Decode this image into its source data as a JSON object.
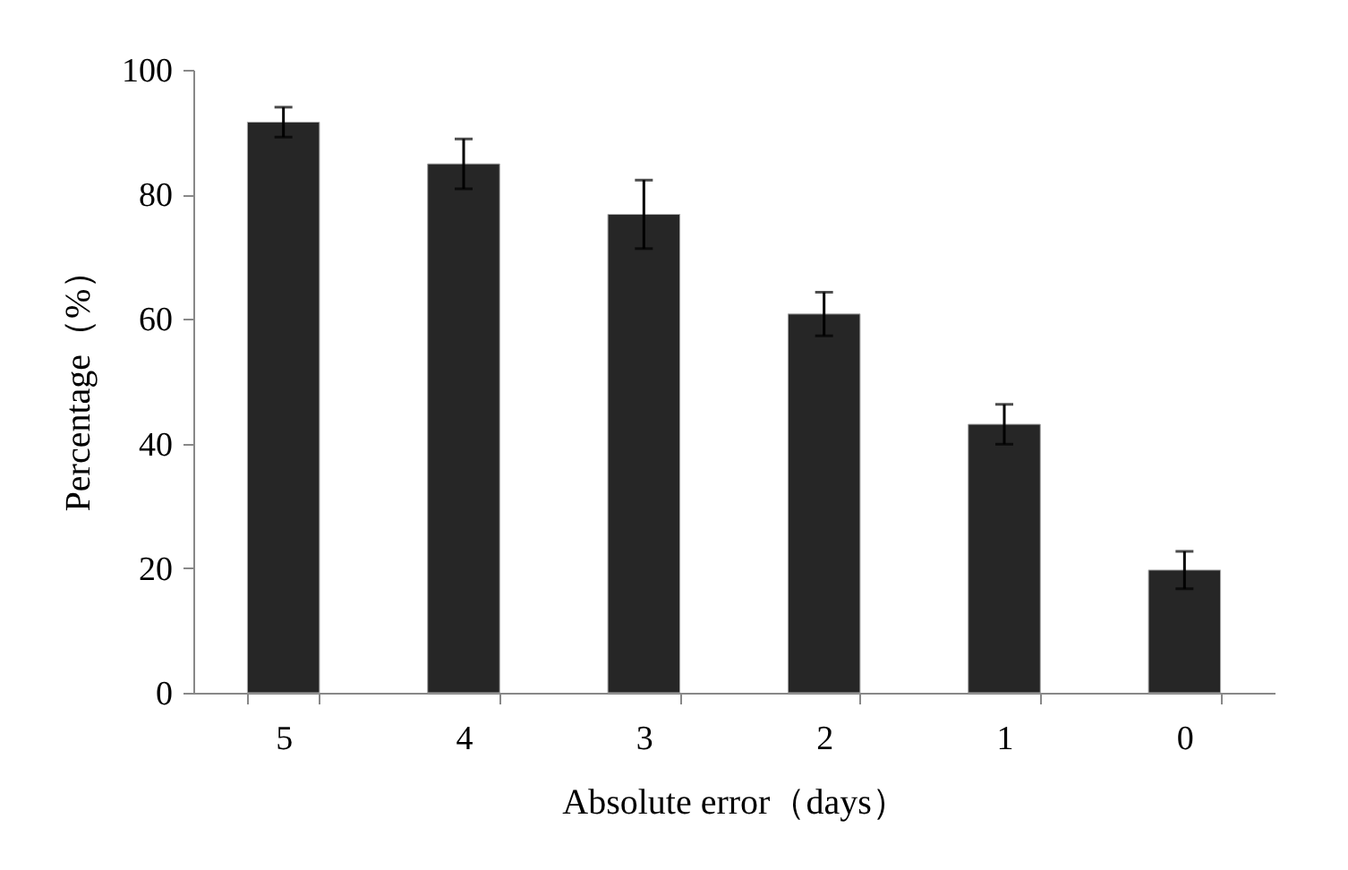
{
  "chart_data": {
    "type": "bar",
    "xlabel": "Absolute error（days）",
    "ylabel": "Percentage（%）",
    "categories": [
      "5",
      "4",
      "3",
      "2",
      "1",
      "0"
    ],
    "values": [
      91.6,
      84.9,
      76.8,
      60.8,
      43.1,
      19.7
    ],
    "errors": [
      2.4,
      4,
      5.5,
      3.5,
      3.2,
      3
    ],
    "color": "#262626",
    "ylim": [
      0,
      100
    ],
    "yticks": [
      0,
      20,
      40,
      60,
      80,
      100
    ],
    "grid": false
  }
}
